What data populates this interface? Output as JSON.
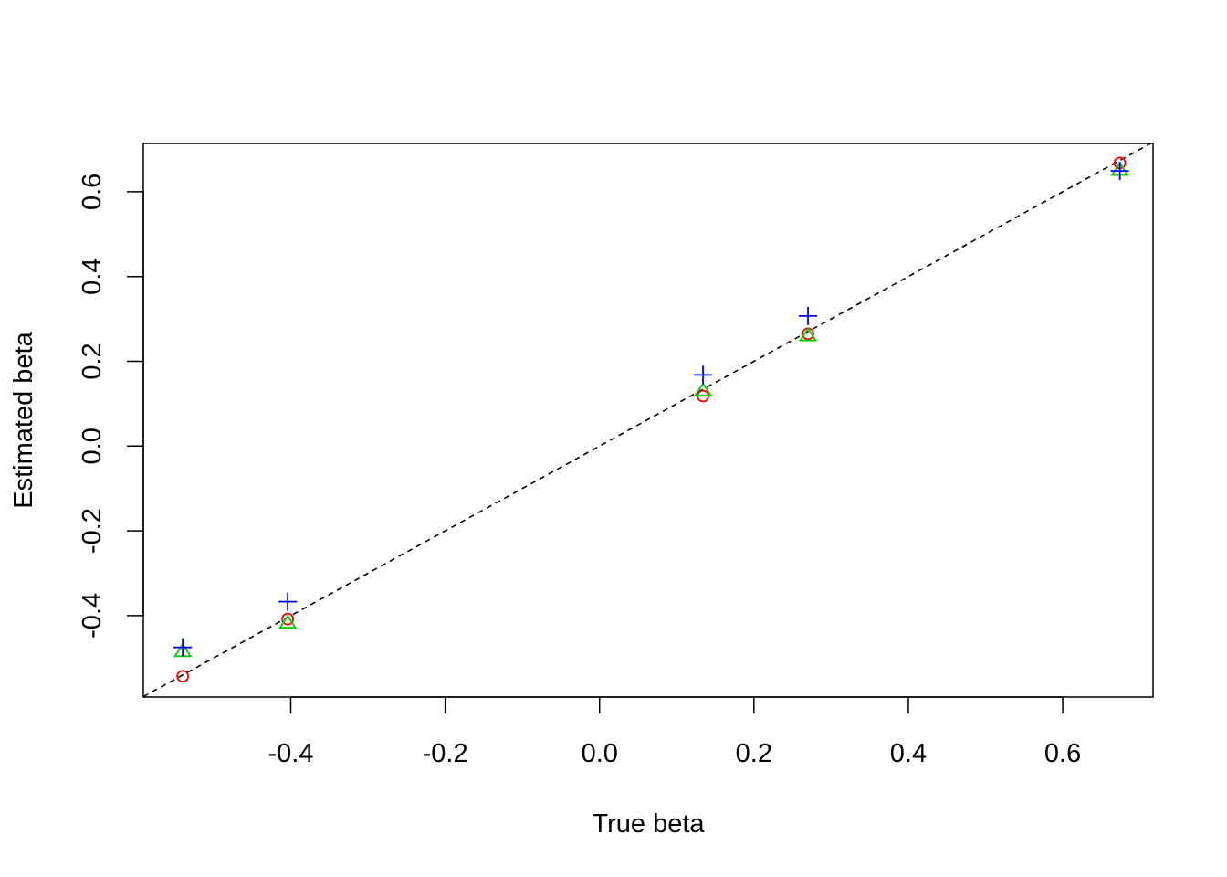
{
  "chart_data": {
    "type": "scatter",
    "title": "",
    "xlabel": "True beta",
    "ylabel": "Estimated beta",
    "xlim": [
      -0.591,
      0.717
    ],
    "ylim": [
      -0.592,
      0.714
    ],
    "x_ticks": [
      {
        "value": -0.4,
        "label": "-0.4"
      },
      {
        "value": -0.2,
        "label": "-0.2"
      },
      {
        "value": 0.0,
        "label": "0.0"
      },
      {
        "value": 0.2,
        "label": "0.2"
      },
      {
        "value": 0.4,
        "label": "0.4"
      },
      {
        "value": 0.6,
        "label": "0.6"
      }
    ],
    "y_ticks": [
      {
        "value": -0.4,
        "label": "-0.4"
      },
      {
        "value": -0.2,
        "label": "-0.2"
      },
      {
        "value": 0.0,
        "label": "0.0"
      },
      {
        "value": 0.2,
        "label": "0.2"
      },
      {
        "value": 0.4,
        "label": "0.4"
      },
      {
        "value": 0.6,
        "label": "0.6"
      }
    ],
    "grid": false,
    "legend": "none",
    "reference_line": {
      "slope": 1,
      "intercept": 0,
      "style": "dashed",
      "color": "#000000"
    },
    "series": [
      {
        "marker": "circle",
        "color": "#FF0000",
        "points": [
          {
            "x": -0.54,
            "y": -0.543
          },
          {
            "x": -0.404,
            "y": -0.408
          },
          {
            "x": 0.134,
            "y": 0.118
          },
          {
            "x": 0.27,
            "y": 0.265
          },
          {
            "x": 0.674,
            "y": 0.668
          }
        ]
      },
      {
        "marker": "triangle",
        "color": "#00CD00",
        "points": [
          {
            "x": -0.54,
            "y": -0.485
          },
          {
            "x": -0.404,
            "y": -0.418
          },
          {
            "x": 0.134,
            "y": 0.13
          },
          {
            "x": 0.27,
            "y": 0.26
          },
          {
            "x": 0.674,
            "y": 0.65
          }
        ]
      },
      {
        "marker": "plus",
        "color": "#0000FF",
        "points": [
          {
            "x": -0.54,
            "y": -0.475
          },
          {
            "x": -0.404,
            "y": -0.367
          },
          {
            "x": 0.134,
            "y": 0.168
          },
          {
            "x": 0.27,
            "y": 0.307
          },
          {
            "x": 0.674,
            "y": 0.649
          }
        ]
      }
    ]
  }
}
